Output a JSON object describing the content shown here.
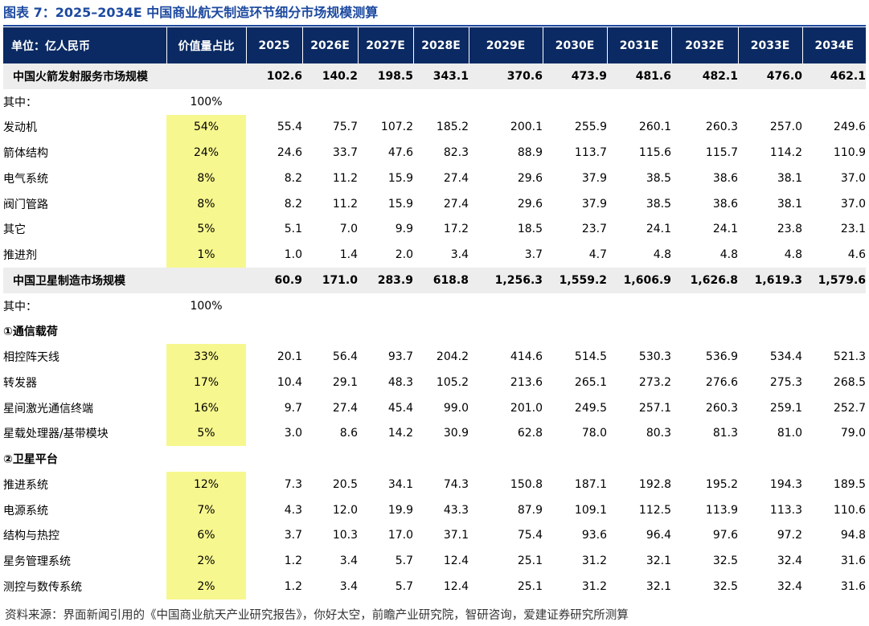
{
  "title": "图表 7：2025–2034E 中国商业航天制造环节细分市场规模测算",
  "header": {
    "label": "单位：亿人民币",
    "share": "价值量占比",
    "years": [
      "2025",
      "2026E",
      "2027E",
      "2028E",
      "2029E",
      "2030E",
      "2031E",
      "2032E",
      "2033E",
      "2034E"
    ]
  },
  "rows": [
    {
      "kind": "total",
      "label": "中国火箭发射服务市场规模",
      "share": "",
      "values": [
        "102.6",
        "140.2",
        "198.5",
        "343.1",
        "370.6",
        "473.9",
        "481.6",
        "482.1",
        "476.0",
        "462.1"
      ]
    },
    {
      "kind": "note",
      "label": "其中：",
      "share": "100%",
      "values": []
    },
    {
      "kind": "item",
      "label": "发动机",
      "share": "54%",
      "values": [
        "55.4",
        "75.7",
        "107.2",
        "185.2",
        "200.1",
        "255.9",
        "260.1",
        "260.3",
        "257.0",
        "249.6"
      ]
    },
    {
      "kind": "item",
      "label": "箭体结构",
      "share": "24%",
      "values": [
        "24.6",
        "33.7",
        "47.6",
        "82.3",
        "88.9",
        "113.7",
        "115.6",
        "115.7",
        "114.2",
        "110.9"
      ]
    },
    {
      "kind": "item",
      "label": "电气系统",
      "share": "8%",
      "values": [
        "8.2",
        "11.2",
        "15.9",
        "27.4",
        "29.6",
        "37.9",
        "38.5",
        "38.6",
        "38.1",
        "37.0"
      ]
    },
    {
      "kind": "item",
      "label": "阀门管路",
      "share": "8%",
      "values": [
        "8.2",
        "11.2",
        "15.9",
        "27.4",
        "29.6",
        "37.9",
        "38.5",
        "38.6",
        "38.1",
        "37.0"
      ]
    },
    {
      "kind": "item",
      "label": "其它",
      "share": "5%",
      "values": [
        "5.1",
        "7.0",
        "9.9",
        "17.2",
        "18.5",
        "23.7",
        "24.1",
        "24.1",
        "23.8",
        "23.1"
      ]
    },
    {
      "kind": "item",
      "label": "推进剂",
      "share": "1%",
      "values": [
        "1.0",
        "1.4",
        "2.0",
        "3.4",
        "3.7",
        "4.7",
        "4.8",
        "4.8",
        "4.8",
        "4.6"
      ]
    },
    {
      "kind": "total",
      "label": "中国卫星制造市场规模",
      "share": "",
      "values": [
        "60.9",
        "171.0",
        "283.9",
        "618.8",
        "1,256.3",
        "1,559.2",
        "1,606.9",
        "1,626.8",
        "1,619.3",
        "1,579.6"
      ]
    },
    {
      "kind": "note",
      "label": "其中：",
      "share": "100%",
      "values": []
    },
    {
      "kind": "section",
      "label": "①通信载荷",
      "share": "",
      "values": []
    },
    {
      "kind": "item",
      "label": "相控阵天线",
      "share": "33%",
      "values": [
        "20.1",
        "56.4",
        "93.7",
        "204.2",
        "414.6",
        "514.5",
        "530.3",
        "536.9",
        "534.4",
        "521.3"
      ]
    },
    {
      "kind": "item",
      "label": "转发器",
      "share": "17%",
      "values": [
        "10.4",
        "29.1",
        "48.3",
        "105.2",
        "213.6",
        "265.1",
        "273.2",
        "276.6",
        "275.3",
        "268.5"
      ]
    },
    {
      "kind": "item",
      "label": "星间激光通信终端",
      "share": "16%",
      "values": [
        "9.7",
        "27.4",
        "45.4",
        "99.0",
        "201.0",
        "249.5",
        "257.1",
        "260.3",
        "259.1",
        "252.7"
      ]
    },
    {
      "kind": "item",
      "label": "星载处理器/基带模块",
      "share": "5%",
      "values": [
        "3.0",
        "8.6",
        "14.2",
        "30.9",
        "62.8",
        "78.0",
        "80.3",
        "81.3",
        "81.0",
        "79.0"
      ]
    },
    {
      "kind": "section",
      "label": "②卫星平台",
      "share": "",
      "values": []
    },
    {
      "kind": "item",
      "label": "推进系统",
      "share": "12%",
      "values": [
        "7.3",
        "20.5",
        "34.1",
        "74.3",
        "150.8",
        "187.1",
        "192.8",
        "195.2",
        "194.3",
        "189.5"
      ]
    },
    {
      "kind": "item",
      "label": "电源系统",
      "share": "7%",
      "values": [
        "4.3",
        "12.0",
        "19.9",
        "43.3",
        "87.9",
        "109.1",
        "112.5",
        "113.9",
        "113.3",
        "110.6"
      ]
    },
    {
      "kind": "item",
      "label": "结构与热控",
      "share": "6%",
      "values": [
        "3.7",
        "10.3",
        "17.0",
        "37.1",
        "75.4",
        "93.6",
        "96.4",
        "97.6",
        "97.2",
        "94.8"
      ]
    },
    {
      "kind": "item",
      "label": "星务管理系统",
      "share": "2%",
      "values": [
        "1.2",
        "3.4",
        "5.7",
        "12.4",
        "25.1",
        "31.2",
        "32.1",
        "32.5",
        "32.4",
        "31.6"
      ]
    },
    {
      "kind": "item",
      "label": "测控与数传系统",
      "share": "2%",
      "values": [
        "1.2",
        "3.4",
        "5.7",
        "12.4",
        "25.1",
        "31.2",
        "32.1",
        "32.5",
        "32.4",
        "31.6"
      ]
    }
  ],
  "source": "资料来源：界面新闻引用的《中国商业航天产业研究报告》，你好太空，前瞻产业研究院，智研咨询，爱建证券研究所测算",
  "colors": {
    "title": "#1d4aa0",
    "header_bg": "#0b2a63",
    "total_bg": "#ededed",
    "highlight": "#f7f78f"
  }
}
